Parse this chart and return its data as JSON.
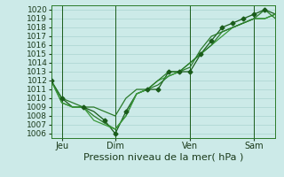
{
  "xlabel": "Pression niveau de la mer( hPa )",
  "ylim": [
    1005.5,
    1020.5
  ],
  "yticks": [
    1006,
    1007,
    1008,
    1009,
    1010,
    1011,
    1012,
    1013,
    1014,
    1015,
    1016,
    1017,
    1018,
    1019,
    1020
  ],
  "xlim": [
    0,
    10.5
  ],
  "x_tick_positions": [
    0.5,
    3.0,
    6.5,
    9.5
  ],
  "x_tick_labels": [
    "Jeu",
    "Dim",
    "Ven",
    "Sam"
  ],
  "background_color": "#cceae8",
  "grid_color": "#aad4d0",
  "line_color_dark": "#1a5c1a",
  "line_color_mid": "#2a7a2a",
  "line_color_light": "#3a9a3a",
  "series1_x": [
    0.0,
    0.5,
    1.0,
    1.5,
    2.0,
    2.5,
    3.0,
    3.5,
    4.0,
    4.5,
    5.0,
    5.5,
    6.0,
    6.5,
    7.0,
    7.5,
    8.0,
    8.5,
    9.0,
    9.5,
    10.0,
    10.5
  ],
  "series1_y": [
    1012,
    1010,
    1009,
    1009,
    1008.5,
    1007.5,
    1006.0,
    1008.5,
    1010.5,
    1011.0,
    1011.0,
    1013.0,
    1013.0,
    1013.0,
    1015.0,
    1016.5,
    1018.0,
    1018.5,
    1019.0,
    1019.5,
    1020.0,
    1019.5
  ],
  "series2_x": [
    0.0,
    0.5,
    1.0,
    1.5,
    2.0,
    2.5,
    3.0,
    3.5,
    4.0,
    4.5,
    5.0,
    5.5,
    6.0,
    6.5,
    7.0,
    7.5,
    8.0,
    8.5,
    9.0,
    9.5,
    10.0,
    10.5
  ],
  "series2_y": [
    1012,
    1009.5,
    1009.0,
    1009.0,
    1008.0,
    1007.2,
    1006.5,
    1008.0,
    1010.5,
    1011.0,
    1011.5,
    1012.5,
    1013.0,
    1013.5,
    1015.5,
    1017.0,
    1017.5,
    1018.0,
    1018.5,
    1019.0,
    1019.0,
    1019.5
  ],
  "series3_x": [
    0.0,
    0.5,
    1.0,
    1.5,
    2.0,
    2.5,
    3.0,
    3.5,
    4.0,
    4.5,
    5.0,
    5.5,
    6.0,
    6.5,
    7.0,
    7.5,
    8.0,
    8.5,
    9.0,
    9.5,
    10.0,
    10.5
  ],
  "series3_y": [
    1012,
    1009.5,
    1009.0,
    1009.0,
    1007.5,
    1007.0,
    1006.5,
    1008.0,
    1010.5,
    1011.0,
    1012.0,
    1012.5,
    1013.0,
    1014.0,
    1015.0,
    1016.0,
    1017.0,
    1018.0,
    1018.5,
    1019.0,
    1019.0,
    1019.5
  ],
  "series4_x": [
    0.0,
    0.5,
    1.0,
    1.5,
    2.0,
    2.5,
    3.0,
    3.5,
    4.0,
    4.5,
    5.0,
    5.5,
    6.0,
    6.5,
    7.0,
    7.5,
    8.0,
    8.5,
    9.0,
    9.5,
    10.0,
    10.5
  ],
  "series4_y": [
    1012,
    1010,
    1009.5,
    1009.0,
    1009.0,
    1008.5,
    1008.0,
    1010.0,
    1011.0,
    1011.0,
    1012.0,
    1013.0,
    1013.0,
    1014.0,
    1015.0,
    1016.0,
    1017.5,
    1018.0,
    1018.5,
    1019.0,
    1020.0,
    1019.0
  ],
  "markers_x": [
    0.0,
    0.5,
    1.5,
    2.5,
    3.0,
    3.5,
    4.5,
    5.0,
    5.5,
    6.0,
    6.5,
    7.0,
    7.5,
    8.0,
    8.5,
    9.0,
    9.5,
    10.0
  ],
  "markers_y": [
    1012,
    1010,
    1009,
    1007.5,
    1006.0,
    1008.5,
    1011.0,
    1011.0,
    1013.0,
    1013.0,
    1013.0,
    1015.0,
    1016.5,
    1018.0,
    1018.5,
    1019.0,
    1019.5,
    1020.0
  ],
  "vline_x": [
    0.5,
    3.0,
    6.5,
    9.5
  ],
  "fontsize_xlabel": 8,
  "fontsize_yticks": 6.5,
  "fontsize_xticks": 7,
  "linewidth": 0.9,
  "marker_size": 2.5
}
